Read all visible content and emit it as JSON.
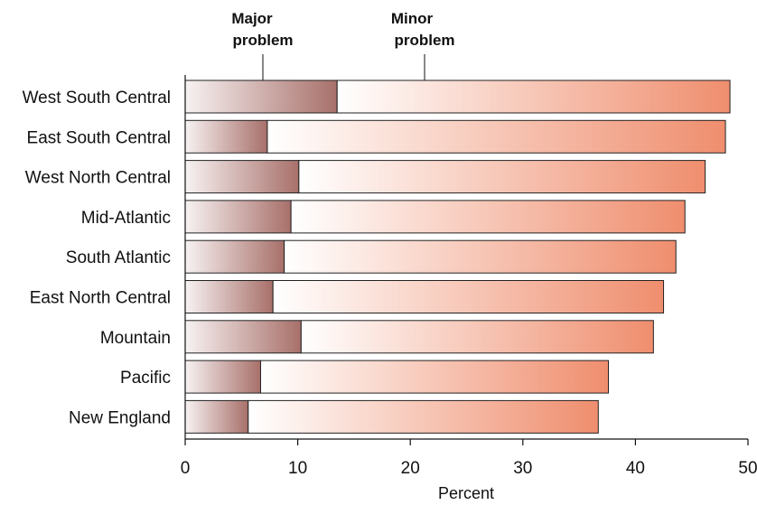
{
  "chart_data": {
    "type": "bar",
    "orientation": "horizontal",
    "stacked": true,
    "categories": [
      "West South Central",
      "East South Central",
      "West North Central",
      "Mid-Atlantic",
      "South Atlantic",
      "East North Central",
      "Mountain",
      "Pacific",
      "New England"
    ],
    "series": [
      {
        "name": "Major problem",
        "values": [
          13.5,
          7.3,
          10.1,
          9.4,
          8.8,
          7.8,
          10.3,
          6.7,
          5.6
        ]
      },
      {
        "name": "Minor problem",
        "values": [
          34.9,
          40.7,
          36.1,
          35.0,
          34.8,
          34.7,
          31.3,
          30.9,
          31.1
        ]
      }
    ],
    "totals": [
      48.4,
      48.0,
      46.2,
      44.4,
      43.6,
      42.5,
      41.6,
      37.6,
      36.7
    ],
    "xlabel": "Percent",
    "xlim": [
      0,
      50
    ],
    "xticks": [
      0,
      10,
      20,
      30,
      40,
      50
    ],
    "legend_placement": "top",
    "grid": false,
    "colors": {
      "major_start": "#f7f2f2",
      "major_end": "#a8706a",
      "minor_start": "#ffffff",
      "minor_end": "#ef8e6e"
    }
  },
  "legend": {
    "major_line1": "Major",
    "major_line2": "problem",
    "minor_line1": "Minor",
    "minor_line2": "problem"
  }
}
